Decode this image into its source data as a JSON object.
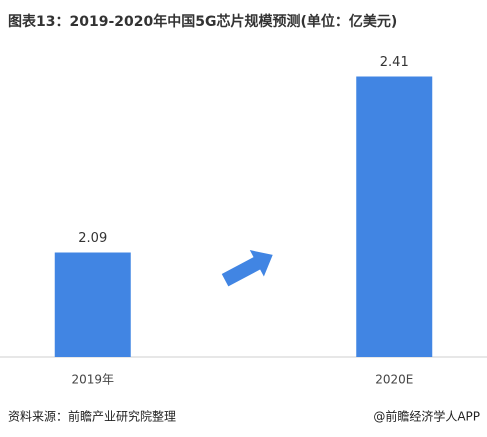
{
  "chart_data": {
    "type": "bar",
    "title": "图表13：2019-2020年中国5G芯片规模预测(单位：亿美元)",
    "categories": [
      "2019年",
      "2020E"
    ],
    "values": [
      2.09,
      2.41
    ],
    "color": "#4185e3",
    "ylim": [
      1.9,
      2.5
    ],
    "source": "资料来源：前瞻产业研究院整理",
    "credit": "@前瞻经济学人APP"
  }
}
